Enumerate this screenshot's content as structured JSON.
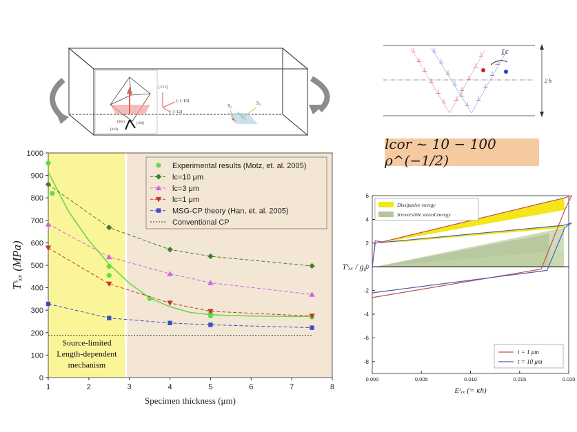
{
  "top_left_diagram": {
    "miller_111": "[111]",
    "miller_1m10": "(-1-10)",
    "miller_1m12": "(-1-12)",
    "miller_001": "[001]",
    "miller_010": "[010]",
    "miller_100": "[100]",
    "s1": "S₁",
    "s2": "S₂",
    "s3": "S₃"
  },
  "top_right_diagram": {
    "lc_label": "l′c",
    "h_label": "2 h"
  },
  "formula": "lₐₒᵣ ∼ 10 − 100 ρ⁻¹ᐟ²",
  "formula_text": "lcor ~ 10 − 100 ρ^(−1/2)",
  "chart_data": [
    {
      "type": "line",
      "xlabel": "Specimen thickness (μm)",
      "ylabel": "Tˢₓₓ (MPa)",
      "xlim": [
        1,
        8
      ],
      "ylim": [
        0,
        1000
      ],
      "xticks": [
        "1",
        "2",
        "3",
        "4",
        "5",
        "6",
        "7",
        "8"
      ],
      "yticks": [
        "0",
        "100",
        "200",
        "300",
        "400",
        "500",
        "600",
        "700",
        "800",
        "900",
        "1000"
      ],
      "shaded_region_label": [
        "Source-limited",
        "Length-dependent",
        "mechanism"
      ],
      "shaded_region_x": [
        1,
        2.9
      ],
      "legend": [
        "Experimental results (Motz, et. al. 2005)",
        "lc=10 μm",
        "lc=3 μm",
        "lc=1 μm",
        "MSG-CP theory (Han, et. al. 2005)",
        "Conventional CP"
      ],
      "series": [
        {
          "name": "Experimental results (Motz, et. al. 2005)",
          "color": "#66d94c",
          "marker": "circle",
          "x": [
            1,
            1.1,
            2.5,
            2.5,
            3.5,
            5,
            5,
            7.5
          ],
          "y": [
            955,
            820,
            495,
            455,
            352,
            285,
            275,
            270
          ]
        },
        {
          "name": "lc=10 μm",
          "color": "#3f7f2a",
          "marker": "diamond",
          "x": [
            1,
            2.5,
            4,
            5,
            7.5
          ],
          "y": [
            860,
            668,
            570,
            540,
            497
          ]
        },
        {
          "name": "lc=3 μm",
          "color": "#cc66dd",
          "marker": "triangle-up",
          "x": [
            1,
            2.5,
            4,
            5,
            7.5
          ],
          "y": [
            683,
            537,
            462,
            422,
            370
          ]
        },
        {
          "name": "lc=1 μm",
          "color": "#c0392b",
          "marker": "triangle-down",
          "x": [
            1,
            2.5,
            4,
            5,
            7.5
          ],
          "y": [
            577,
            417,
            332,
            295,
            274
          ]
        },
        {
          "name": "MSG-CP theory (Han, et. al. 2005)",
          "color": "#3b4fc4",
          "marker": "square",
          "x": [
            1,
            2.5,
            4,
            5,
            7.5
          ],
          "y": [
            328,
            265,
            243,
            235,
            222
          ]
        },
        {
          "name": "Conventional CP",
          "color": "#333333",
          "marker": "none",
          "x": [
            1,
            7.5
          ],
          "y": [
            188,
            188
          ]
        }
      ],
      "fit_curve": {
        "color": "#66d94c",
        "x": [
          1,
          1.5,
          2,
          2.5,
          3,
          3.5,
          4,
          4.5,
          5,
          5.5,
          6,
          6.5,
          7,
          7.5
        ],
        "y": [
          915,
          740,
          610,
          505,
          420,
          355,
          315,
          290,
          280,
          276,
          274,
          273,
          272,
          272
        ]
      }
    },
    {
      "type": "line",
      "xlabel": "Eˢₓₓ (= κh)",
      "ylabel": "Tˢₓₓ / g₀",
      "xlim": [
        0,
        0.02
      ],
      "ylim": [
        -9,
        6
      ],
      "xticks": [
        "0.000",
        "0.005",
        "0.010",
        "0.015",
        "0.020"
      ],
      "yticks": [
        "-8",
        "-6",
        "-4",
        "-2",
        "0",
        "2",
        "4",
        "6"
      ],
      "legend_top": [
        "Dissipative energy",
        "Irreversible stored energy"
      ],
      "legend_bottom": [
        "t = 1 μm",
        "t = 10 μm"
      ],
      "series": [
        {
          "name": "t = 1 μm",
          "color": "#c0504d",
          "x": [
            0,
            0.0003,
            0.001,
            0.0195,
            0.0203,
            0.0196,
            0.0172,
            0
          ],
          "y": [
            0,
            2.2,
            2.1,
            5.8,
            6.0,
            4.8,
            -0.2,
            -2.6
          ]
        },
        {
          "name": "t = 10 μm",
          "color": "#4f5fae",
          "x": [
            0,
            0.0003,
            0.001,
            0.0195,
            0.0203,
            0.0196,
            0.0178,
            0
          ],
          "y": [
            0,
            2.0,
            2.05,
            3.5,
            3.7,
            3.3,
            -0.3,
            -2.2
          ]
        }
      ]
    }
  ]
}
